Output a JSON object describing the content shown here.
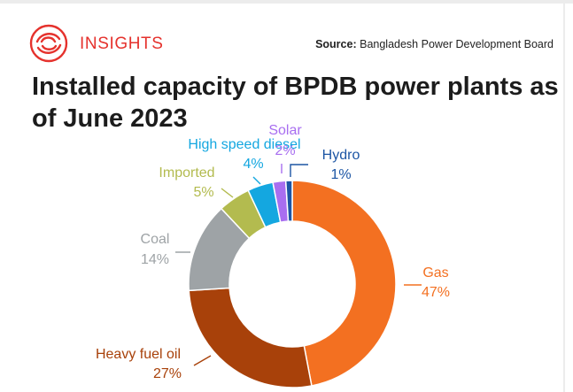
{
  "header": {
    "brand": "INSIGHTS",
    "source_label": "Source:",
    "source_text": "Bangladesh Power Development Board",
    "brand_color": "#e5322d"
  },
  "chart_data": {
    "type": "pie",
    "variant": "donut",
    "title": "Installed capacity of BPDB power plants as of June 2023",
    "slices": [
      {
        "label": "Gas",
        "value": 47,
        "display": "47%",
        "color": "#f37021"
      },
      {
        "label": "Heavy fuel oil",
        "value": 27,
        "display": "27%",
        "color": "#a8410a"
      },
      {
        "label": "Coal",
        "value": 14,
        "display": "14%",
        "color": "#9ea3a6"
      },
      {
        "label": "Imported",
        "value": 5,
        "display": "5%",
        "color": "#b3bb4f"
      },
      {
        "label": "High speed diesel",
        "value": 4,
        "display": "4%",
        "color": "#14a7e0"
      },
      {
        "label": "Solar",
        "value": 2,
        "display": "2%",
        "color": "#a86ef0"
      },
      {
        "label": "Hydro",
        "value": 1,
        "display": "1%",
        "color": "#1c55a4"
      }
    ]
  }
}
